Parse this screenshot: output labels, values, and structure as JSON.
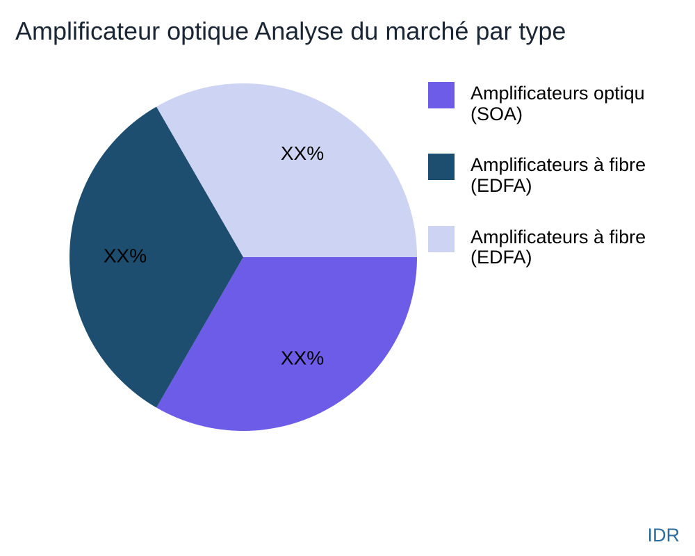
{
  "watermark": "IDR",
  "chart_data": {
    "type": "pie",
    "title": "Amplificateur optique Analyse du marché par type",
    "legend_position": "right",
    "start_angle_deg": 0,
    "direction": "clockwise",
    "values_note": "Slice percentages are shown only as XX% placeholders; angles are approximately equal thirds",
    "slices": [
      {
        "legend_line1": "Amplificateurs optiqu",
        "legend_line2": "(SOA)",
        "value": 33.33,
        "display_value": "XX%",
        "color": "#6C5CE7"
      },
      {
        "legend_line1": "Amplificateurs à fibre",
        "legend_line2": "(EDFA)",
        "value": 33.34,
        "display_value": "XX%",
        "color": "#1E4E6F"
      },
      {
        "legend_line1": "Amplificateurs à fibre",
        "legend_line2": "(EDFA)",
        "value": 33.33,
        "display_value": "XX%",
        "color": "#CDD3F2"
      }
    ]
  }
}
